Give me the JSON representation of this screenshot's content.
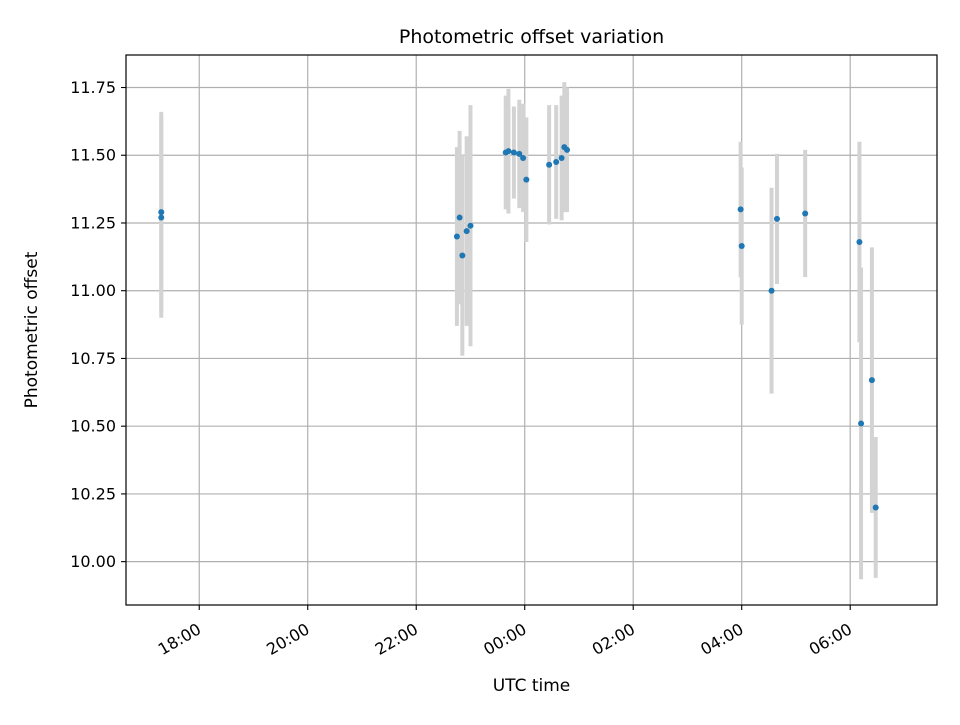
{
  "chart_data": {
    "type": "scatter",
    "title": "Photometric offset variation",
    "xlabel": "UTC time",
    "ylabel": "Photometric offset",
    "x_unit": "UTC hours (values beyond 24 fall on the following day)",
    "xlim": [
      16.65,
      31.6
    ],
    "ylim": [
      9.84,
      11.87
    ],
    "grid": true,
    "x_ticks": [
      {
        "value": 18,
        "label": "18:00"
      },
      {
        "value": 20,
        "label": "20:00"
      },
      {
        "value": 22,
        "label": "22:00"
      },
      {
        "value": 24,
        "label": "00:00"
      },
      {
        "value": 26,
        "label": "02:00"
      },
      {
        "value": 28,
        "label": "04:00"
      },
      {
        "value": 30,
        "label": "06:00"
      }
    ],
    "y_ticks": [
      {
        "value": 10.0,
        "label": "10.00"
      },
      {
        "value": 10.25,
        "label": "10.25"
      },
      {
        "value": 10.5,
        "label": "10.50"
      },
      {
        "value": 10.75,
        "label": "10.75"
      },
      {
        "value": 11.0,
        "label": "11.00"
      },
      {
        "value": 11.25,
        "label": "11.25"
      },
      {
        "value": 11.5,
        "label": "11.50"
      },
      {
        "value": 11.75,
        "label": "11.75"
      }
    ],
    "colors": {
      "points": "#1f77b4",
      "error_bars": "#d3d3d3",
      "grid": "#b0b0b0"
    },
    "points": [
      {
        "x": 17.3,
        "y": 11.29,
        "err": 0.37
      },
      {
        "x": 17.3,
        "y": 11.27,
        "err": 0.37
      },
      {
        "x": 22.75,
        "y": 11.2,
        "err": 0.33
      },
      {
        "x": 22.8,
        "y": 11.27,
        "err": 0.32
      },
      {
        "x": 22.85,
        "y": 11.13,
        "err": 0.37
      },
      {
        "x": 22.93,
        "y": 11.22,
        "err": 0.35
      },
      {
        "x": 23.0,
        "y": 11.24,
        "err": 0.445
      },
      {
        "x": 23.65,
        "y": 11.51,
        "err": 0.21
      },
      {
        "x": 23.7,
        "y": 11.515,
        "err": 0.23
      },
      {
        "x": 23.8,
        "y": 11.51,
        "err": 0.17
      },
      {
        "x": 23.9,
        "y": 11.505,
        "err": 0.2
      },
      {
        "x": 23.97,
        "y": 11.49,
        "err": 0.2
      },
      {
        "x": 24.03,
        "y": 11.41,
        "err": 0.23
      },
      {
        "x": 24.45,
        "y": 11.465,
        "err": 0.22
      },
      {
        "x": 24.58,
        "y": 11.475,
        "err": 0.21
      },
      {
        "x": 24.68,
        "y": 11.49,
        "err": 0.23
      },
      {
        "x": 24.73,
        "y": 11.53,
        "err": 0.24
      },
      {
        "x": 24.78,
        "y": 11.52,
        "err": 0.23
      },
      {
        "x": 27.98,
        "y": 11.3,
        "err": 0.25
      },
      {
        "x": 28.0,
        "y": 11.165,
        "err": 0.29
      },
      {
        "x": 28.55,
        "y": 11.0,
        "err": 0.38
      },
      {
        "x": 28.65,
        "y": 11.265,
        "err": 0.24
      },
      {
        "x": 29.17,
        "y": 11.285,
        "err": 0.235
      },
      {
        "x": 30.17,
        "y": 11.18,
        "err": 0.37
      },
      {
        "x": 30.2,
        "y": 10.51,
        "err": 0.575
      },
      {
        "x": 30.4,
        "y": 10.67,
        "err": 0.49
      },
      {
        "x": 30.47,
        "y": 10.2,
        "err": 0.26
      }
    ]
  }
}
